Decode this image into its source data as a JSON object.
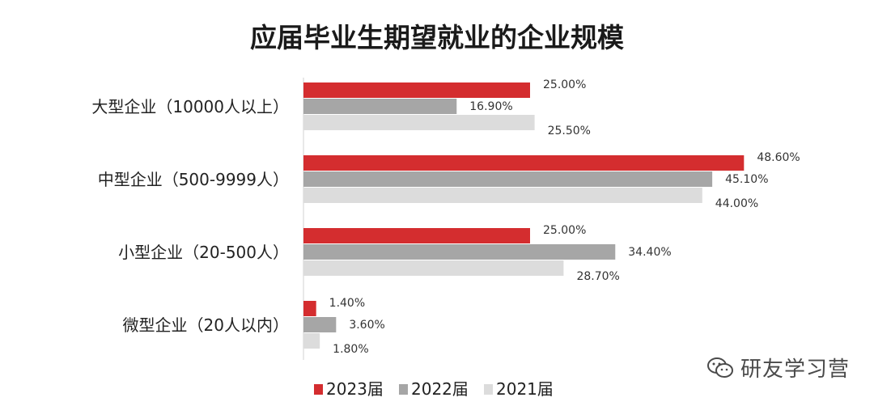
{
  "chart_data": {
    "type": "bar",
    "orientation": "horizontal",
    "title": "应届毕业生期望就业的企业规模",
    "categories": [
      "大型企业（10000人以上）",
      "中型企业（500-9999人）",
      "小型企业（20-500人）",
      "微型企业（20人以内）"
    ],
    "series": [
      {
        "name": "2023届",
        "color": "#d42d2f",
        "values": [
          25.0,
          48.6,
          25.0,
          1.4
        ],
        "labels": [
          "25.00%",
          "48.60%",
          "25.00%",
          "1.40%"
        ]
      },
      {
        "name": "2022届",
        "color": "#a6a6a6",
        "values": [
          16.9,
          45.1,
          34.4,
          3.6
        ],
        "labels": [
          "16.90%",
          "45.10%",
          "34.40%",
          "3.60%"
        ]
      },
      {
        "name": "2021届",
        "color": "#dcdcdc",
        "values": [
          25.5,
          44.0,
          28.7,
          1.8
        ],
        "labels": [
          "25.50%",
          "44.00%",
          "28.70%",
          "1.80%"
        ]
      }
    ],
    "xlim": [
      0,
      50
    ],
    "grid": false,
    "legend": "bottom"
  },
  "watermark": {
    "text": "研友学习营",
    "icon": "wechat-icon"
  }
}
